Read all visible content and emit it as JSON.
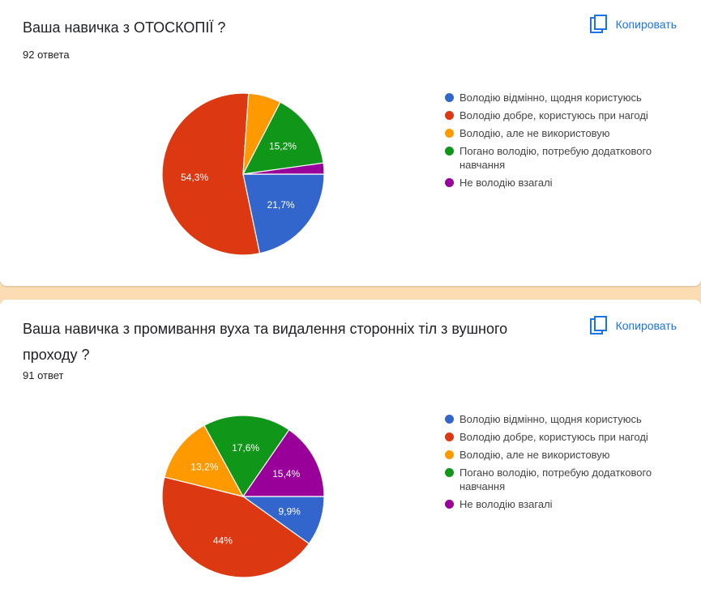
{
  "copy_label": "Копировать",
  "colors": [
    "#3366cc",
    "#dc3912",
    "#ff9900",
    "#109618",
    "#990099"
  ],
  "legend_labels": [
    "Володію відмінно, щодня користуюсь",
    "Володію добре, користуюсь при нагоді",
    "Володію, але не використовую",
    "Погано володію, потребую додаткового навчання",
    "Не володію взагалі"
  ],
  "cards": [
    {
      "title": "Ваша навичка з ОТОСКОПІЇ ?",
      "count": "92 ответа"
    },
    {
      "title": "Ваша навичка з промивання вуха та видалення сторонніх тіл з вушного проходу ?",
      "count": "91 ответ"
    }
  ],
  "chart_data": [
    {
      "type": "pie",
      "title": "Ваша навичка з ОТОСКОПІЇ ?",
      "categories": [
        "Володію відмінно, щодня користуюсь",
        "Володію добре, користуюсь при нагоді",
        "Володію, але не використовую",
        "Погано володію, потребую додаткового навчання",
        "Не володію взагалі"
      ],
      "values": [
        21.7,
        54.3,
        6.5,
        15.2,
        2.2
      ],
      "data_labels": [
        "21,7%",
        "54,3%",
        "",
        "15,2%",
        ""
      ],
      "legend": "right"
    },
    {
      "type": "pie",
      "title": "Ваша навичка з промивання вуха та видалення сторонніх тіл з вушного проходу ?",
      "categories": [
        "Володію відмінно, щодня користуюсь",
        "Володію добре, користуюсь при нагоді",
        "Володію, але не використовую",
        "Погано володію, потребую додаткового навчання",
        "Не володію взагалі"
      ],
      "values": [
        9.9,
        44,
        13.2,
        17.6,
        15.4
      ],
      "data_labels": [
        "9,9%",
        "44%",
        "13,2%",
        "17,6%",
        "15,4%"
      ],
      "legend": "right"
    }
  ]
}
